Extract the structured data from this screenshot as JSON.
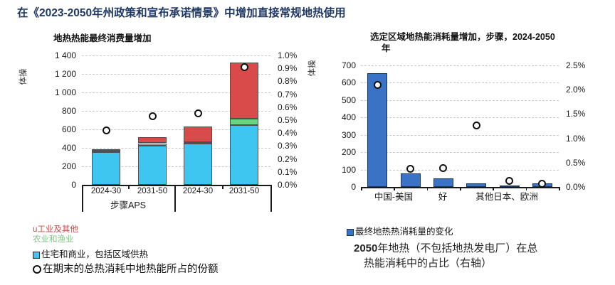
{
  "page_title": "在《2023-2050年州政策和宣布承诺情景》中增加直接常规地热使用",
  "charts": {
    "left": {
      "title": "地热热能最终消费量增加",
      "y_axis_label": "体操",
      "group_label": "步骤APS",
      "y_ticks_left": [
        "1 400",
        "1 200",
        "1 000",
        "800",
        "600",
        "400",
        "200",
        "0"
      ],
      "y_ticks_right": [
        "1.0%",
        "0.9%",
        "0.8%",
        "0.7%",
        "0.6%",
        "0.5%",
        "0.4%",
        "0.3%",
        "0.2%",
        "0.1%",
        "0.0%"
      ]
    },
    "right": {
      "title_line1": "选定区域地热能消耗量增加，步骤，2024-2050",
      "title_line2": "年",
      "y_axis_label": "体操",
      "y_ticks_left": [
        "700",
        "600",
        "500",
        "400",
        "300",
        "200",
        "100",
        "0"
      ],
      "y_ticks_right": [
        "2.5%",
        "2.0%",
        "1.5%",
        "1.0%",
        "0.5%",
        "0.0%"
      ],
      "x_labels": [
        "中国-美国",
        "好",
        "其他日本、欧洲"
      ]
    }
  },
  "chart_data": [
    {
      "type": "bar",
      "subtype": "stacked-columns-with-share-markers",
      "title": "地热热能最终消费量增加",
      "ylabel": "体操",
      "categories": [
        "2024-30",
        "2031-50",
        "2024-30",
        "2031-50"
      ],
      "group_label_visible": "步骤APS",
      "series": [
        {
          "name": "住宅和商业，包括区域供热",
          "color": "#3EC6F0",
          "values": [
            355,
            420,
            445,
            645
          ]
        },
        {
          "name": "农业和渔业",
          "color": "#68D880",
          "values": [
            12,
            30,
            18,
            70
          ]
        },
        {
          "name": "u工业及其他",
          "color": "#D94A4B",
          "values": [
            20,
            65,
            167,
            608
          ]
        }
      ],
      "share_markers_name": "在期末的总热消耗中地热能所占的份额",
      "share_markers_pct": [
        0.42,
        0.53,
        0.55,
        0.91
      ],
      "ylim": [
        0,
        1400
      ],
      "y2lim_pct": [
        0.0,
        1.0
      ],
      "grid": true,
      "legend_position": "below-left"
    },
    {
      "type": "bar",
      "subtype": "columns-with-share-markers",
      "title": "选定区域地热能消耗量增加，步骤，2024-2050年",
      "ylabel": "体操",
      "bar_color": "#3A72C6",
      "bar_border": "#17375E",
      "n_bars": 6,
      "categories_visible": [
        "中国-美国",
        "好",
        "其他日本、欧洲"
      ],
      "values": [
        655,
        78,
        48,
        22,
        6,
        20
      ],
      "share_markers_pct": [
        2.1,
        0.38,
        0.39,
        1.27,
        0.13,
        0.07
      ],
      "ylim": [
        0,
        700
      ],
      "y2lim_pct": [
        0.0,
        2.5
      ],
      "grid": true,
      "legend": "最终地热热消耗量的变化"
    }
  ],
  "legend_left": {
    "items": [
      {
        "label": "u工业及其他",
        "color": "#BE4B48",
        "swatch": "none"
      },
      {
        "label": "农业和渔业",
        "color": "#7FC183",
        "swatch": "none"
      },
      {
        "label": "住宅和商业，包括区域供热",
        "color": "#111111",
        "swatch": "#3EC6F0"
      },
      {
        "label": "在期末的总热消耗中地热能所占的份额",
        "color": "#111111",
        "swatch": "circle"
      }
    ]
  },
  "legend_right": {
    "item_label": "最终地热热消耗量的变化",
    "swatch": "#3A72C6",
    "note_bold": "2050",
    "note_line1": "年地热（不包括地热发电厂）在总",
    "note_line2": "热能消耗中的占比（右轴）"
  },
  "colors": {
    "title": "#1F3864",
    "residential": "#3EC6F0",
    "agriculture": "#68D880",
    "industry": "#D94A4B",
    "right_bar": "#3A72C6",
    "marker_fill": "#FFFFFF",
    "marker_ring": "#111111"
  }
}
